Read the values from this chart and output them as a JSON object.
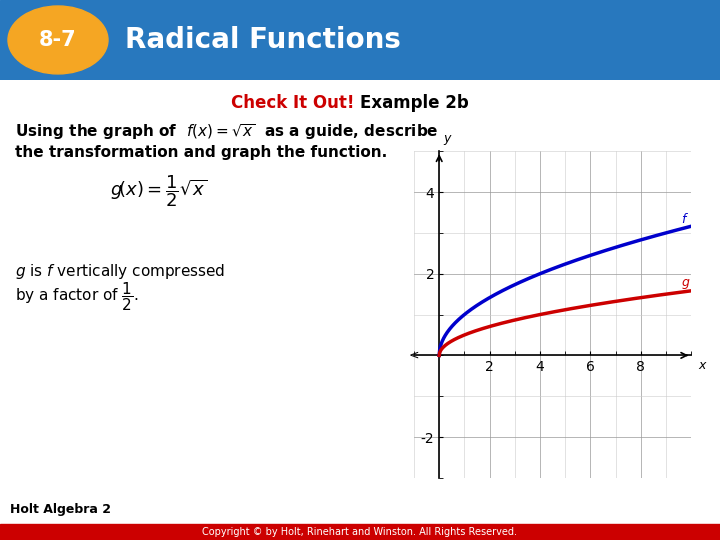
{
  "header_bg_color": "#2878BE",
  "header_text": "Radical Functions",
  "header_number": "8-7",
  "header_number_bg": "#F5A623",
  "check_it_out_color": "#CC0000",
  "body_bg": "#FFFFFF",
  "f_color": "#0000CC",
  "g_color": "#CC0000",
  "graph_xlim": [
    -1,
    10
  ],
  "graph_ylim": [
    -3,
    5
  ],
  "x_ticks": [
    2,
    4,
    6,
    8
  ],
  "y_ticks": [
    -2,
    2,
    4
  ],
  "footer_text": "Holt Algebra 2",
  "copyright_text": "Copyright © by Holt, Rinehart and Winston. All Rights Reserved."
}
